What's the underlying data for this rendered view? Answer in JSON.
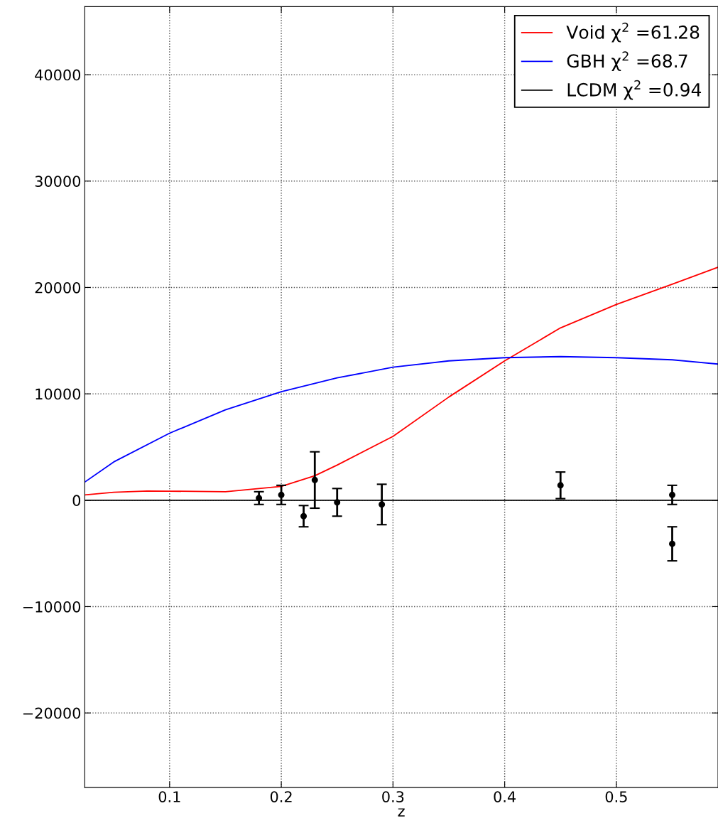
{
  "chart_data": {
    "type": "line",
    "xlabel": "z",
    "xlim": [
      0.024,
      0.591
    ],
    "xticks": [
      0.1,
      0.2,
      0.3,
      0.4,
      0.5
    ],
    "ylim": [
      -27000,
      46400
    ],
    "yticks": [
      -20000,
      -10000,
      0,
      10000,
      20000,
      30000,
      40000
    ],
    "grid": true,
    "legend": "top right",
    "series": [
      {
        "name": "Void χ$^{2}$ =61.28",
        "color": "#ff0000",
        "marker": "none",
        "x": [
          0.024,
          0.05,
          0.08,
          0.1,
          0.15,
          0.2,
          0.23,
          0.25,
          0.3,
          0.35,
          0.4,
          0.45,
          0.5,
          0.55,
          0.591
        ],
        "values": [
          500,
          750,
          870,
          850,
          800,
          1300,
          2300,
          3300,
          6000,
          9700,
          13100,
          16200,
          18400,
          20300,
          21900
        ]
      },
      {
        "name": "GBH χ$^{2}$ =68.7",
        "color": "#0000ff",
        "marker": "none",
        "x": [
          0.024,
          0.05,
          0.1,
          0.15,
          0.2,
          0.25,
          0.3,
          0.35,
          0.4,
          0.45,
          0.5,
          0.55,
          0.591
        ],
        "values": [
          1700,
          3600,
          6300,
          8500,
          10200,
          11500,
          12500,
          13100,
          13400,
          13500,
          13400,
          13200,
          12800
        ]
      },
      {
        "name": "LCDM χ$^{2}$ =0.94",
        "color": "#000000",
        "marker": "none",
        "x": [
          0.024,
          0.591
        ],
        "values": [
          0,
          0
        ]
      },
      {
        "color": "#000000",
        "type": "scatter",
        "marker": "circle",
        "x": [
          0.18,
          0.2,
          0.22,
          0.23,
          0.25,
          0.29,
          0.45,
          0.55,
          0.55
        ],
        "values": [
          200,
          500,
          -1500,
          1900,
          -200,
          -400,
          1400,
          500,
          -4100
        ],
        "errors": [
          600,
          900,
          1000,
          2650,
          1300,
          1900,
          1250,
          900,
          1600
        ]
      }
    ]
  }
}
